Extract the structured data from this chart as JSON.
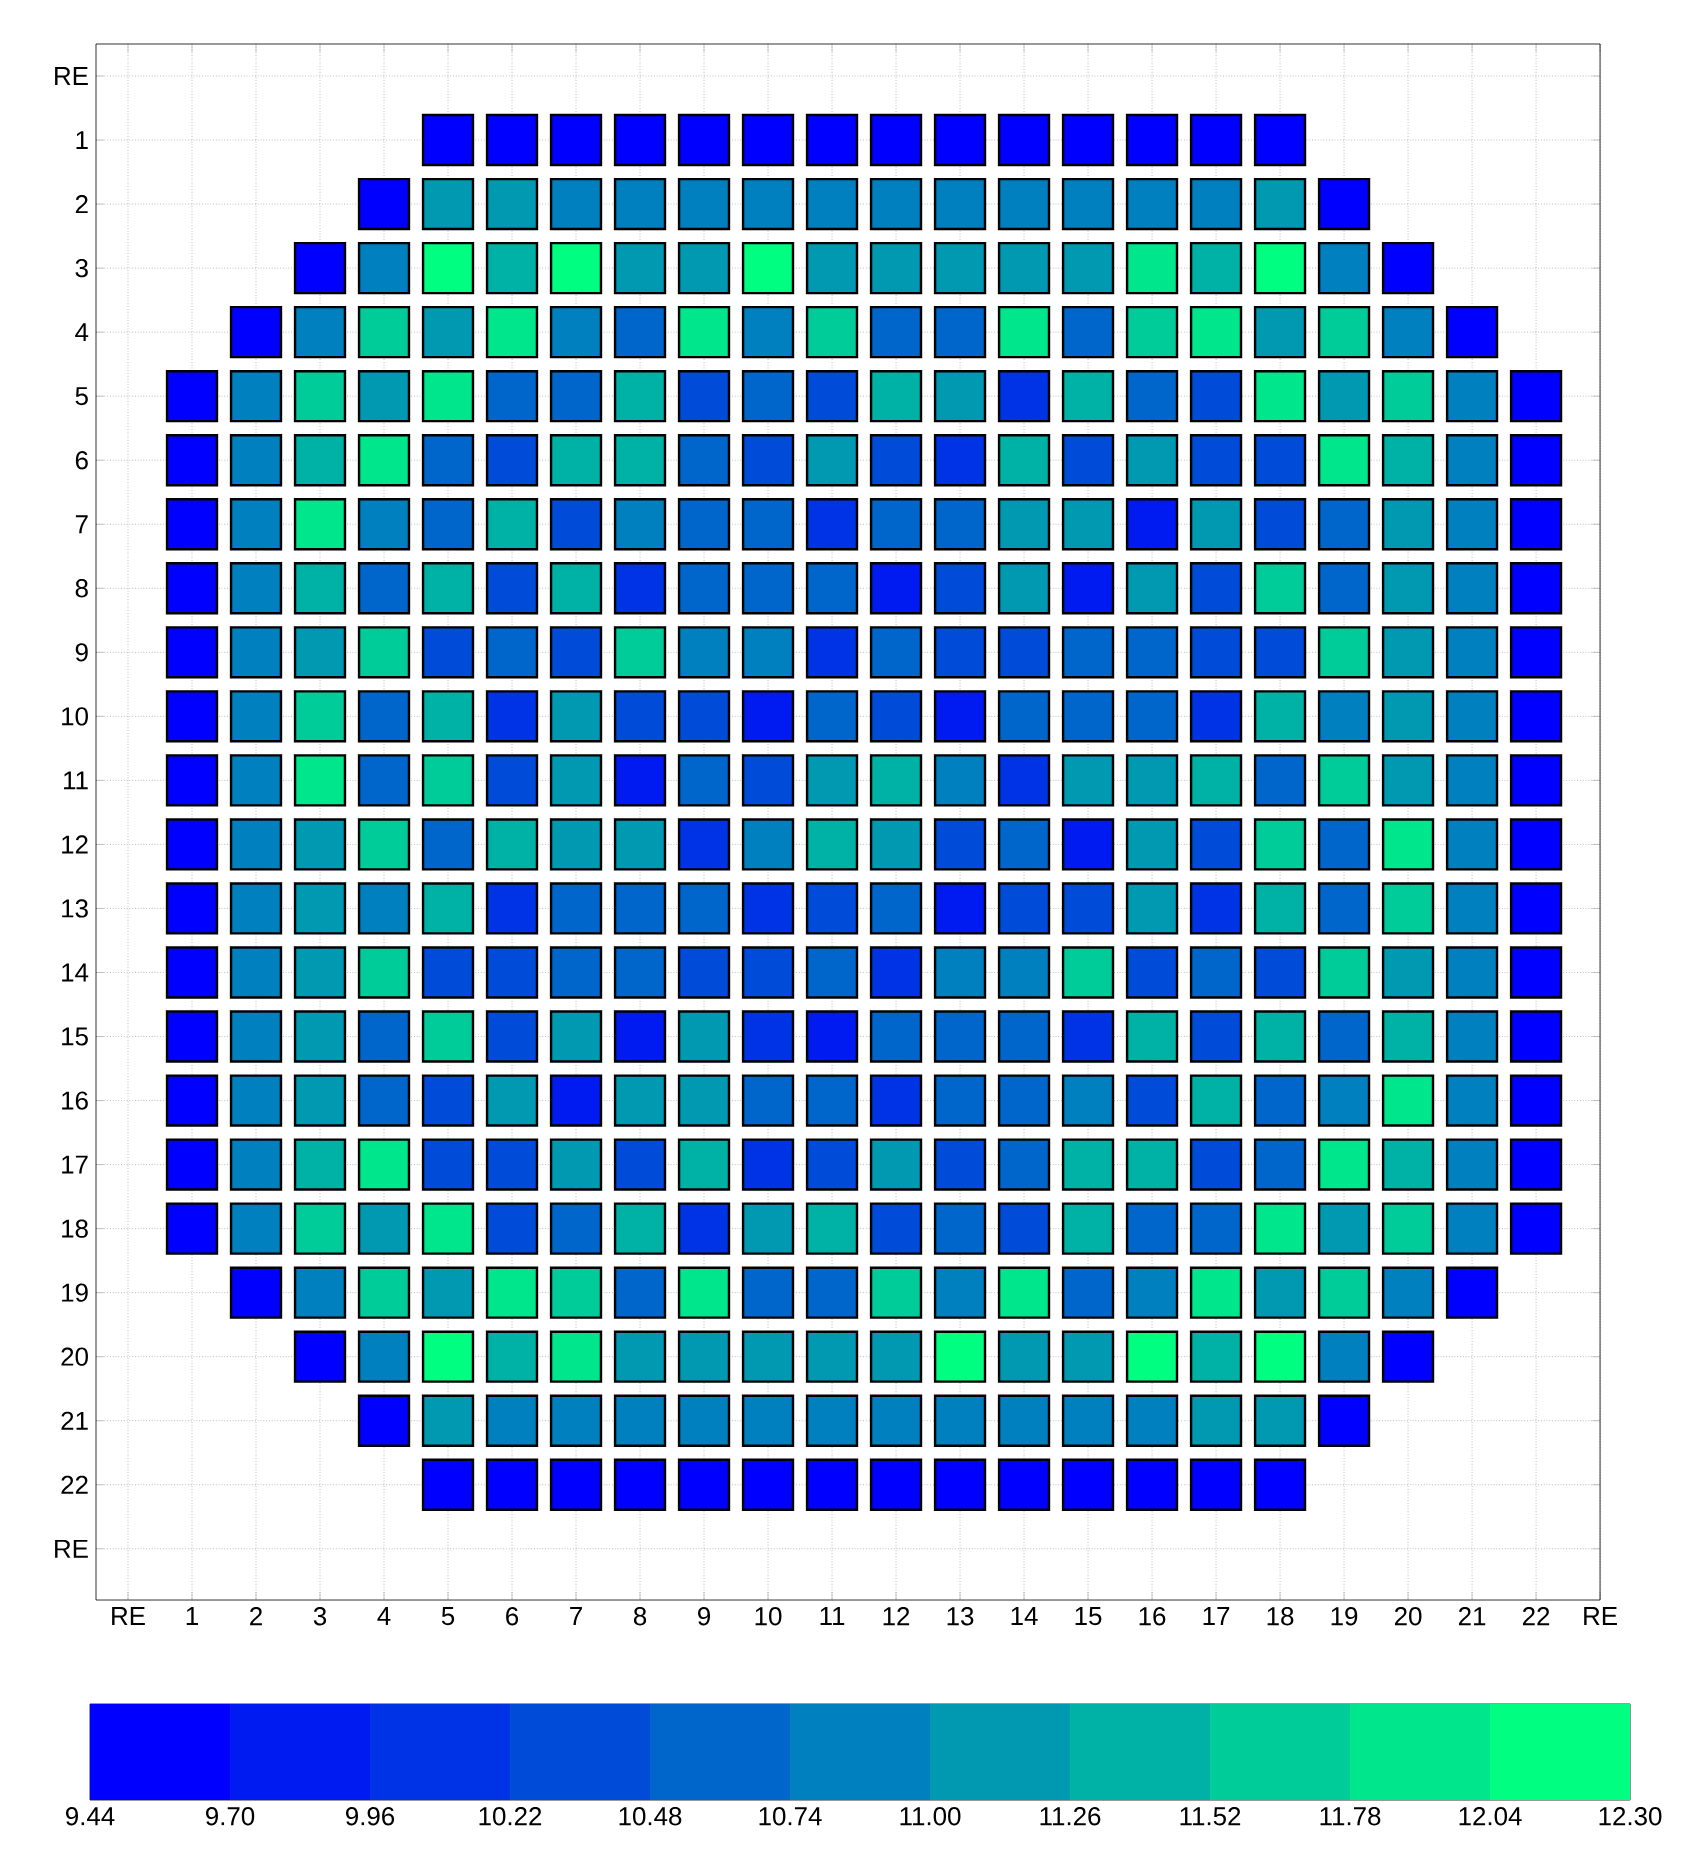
{
  "chart_data": {
    "type": "heatmap",
    "grid": true,
    "categories": [
      "RE",
      "1",
      "2",
      "3",
      "4",
      "5",
      "6",
      "7",
      "8",
      "9",
      "10",
      "11",
      "12",
      "13",
      "14",
      "15",
      "16",
      "17",
      "18",
      "19",
      "20",
      "21",
      "22",
      "RE"
    ],
    "y_categories": [
      "RE",
      "1",
      "2",
      "3",
      "4",
      "5",
      "6",
      "7",
      "8",
      "9",
      "10",
      "11",
      "12",
      "13",
      "14",
      "15",
      "16",
      "17",
      "18",
      "19",
      "20",
      "21",
      "22",
      "RE"
    ],
    "clim": [
      9.44,
      12.3
    ],
    "cticks": [
      9.44,
      {
        "value": 9.7,
        "label": "9.70"
      },
      9.96,
      10.22,
      10.48,
      10.74,
      {
        "value": 11.0,
        "label": "11.00"
      },
      11.26,
      11.52,
      11.78,
      12.04,
      {
        "value": 12.3,
        "label": "12.30"
      }
    ],
    "cells": [
      [
        null,
        null,
        null,
        null,
        null,
        null,
        null,
        null,
        null,
        null,
        null,
        null,
        null,
        null,
        null,
        null,
        null,
        null,
        null,
        null,
        null,
        null,
        null,
        null
      ],
      [
        null,
        null,
        null,
        null,
        null,
        9.57,
        9.57,
        9.57,
        9.57,
        9.57,
        9.57,
        9.57,
        9.57,
        9.57,
        9.57,
        9.57,
        9.57,
        9.57,
        9.57,
        null,
        null,
        null,
        null,
        null
      ],
      [
        null,
        null,
        null,
        null,
        9.57,
        11.13,
        11.13,
        10.87,
        10.87,
        10.87,
        10.87,
        10.87,
        10.87,
        10.87,
        10.87,
        10.87,
        10.87,
        10.87,
        11.13,
        9.57,
        null,
        null,
        null,
        null
      ],
      [
        null,
        null,
        null,
        9.57,
        10.87,
        12.17,
        11.39,
        12.17,
        11.13,
        11.13,
        12.17,
        11.13,
        11.13,
        11.13,
        11.13,
        11.13,
        11.91,
        11.39,
        12.17,
        10.87,
        9.57,
        null,
        null,
        null
      ],
      [
        null,
        null,
        9.57,
        10.87,
        11.65,
        11.13,
        11.91,
        10.87,
        10.61,
        11.91,
        10.87,
        11.65,
        10.61,
        10.61,
        11.91,
        10.61,
        11.65,
        11.91,
        11.13,
        11.65,
        10.87,
        9.57,
        null,
        null
      ],
      [
        null,
        9.57,
        10.87,
        11.65,
        11.13,
        11.91,
        10.61,
        10.61,
        11.39,
        10.35,
        10.61,
        10.35,
        11.39,
        11.13,
        10.09,
        11.39,
        10.61,
        10.35,
        11.91,
        11.13,
        11.65,
        10.87,
        9.57,
        null
      ],
      [
        null,
        9.57,
        10.87,
        11.39,
        11.91,
        10.61,
        10.35,
        11.39,
        11.39,
        10.61,
        10.35,
        11.13,
        10.35,
        10.09,
        11.39,
        10.35,
        11.13,
        10.35,
        10.35,
        11.91,
        11.39,
        10.87,
        9.57,
        null
      ],
      [
        null,
        9.57,
        10.87,
        11.91,
        10.87,
        10.61,
        11.39,
        10.35,
        10.87,
        10.61,
        10.61,
        10.09,
        10.61,
        10.61,
        11.13,
        11.13,
        9.83,
        11.13,
        10.35,
        10.61,
        11.13,
        10.87,
        9.57,
        null
      ],
      [
        null,
        9.57,
        10.87,
        11.39,
        10.61,
        11.39,
        10.35,
        11.39,
        10.09,
        10.61,
        10.61,
        10.61,
        9.83,
        10.35,
        11.13,
        9.83,
        11.13,
        10.35,
        11.65,
        10.61,
        11.13,
        10.87,
        9.57,
        null
      ],
      [
        null,
        9.57,
        10.87,
        11.13,
        11.65,
        10.35,
        10.61,
        10.35,
        11.65,
        10.87,
        10.87,
        10.09,
        10.61,
        10.35,
        10.35,
        10.61,
        10.61,
        10.35,
        10.35,
        11.65,
        11.13,
        10.87,
        9.57,
        null
      ],
      [
        null,
        9.57,
        10.87,
        11.65,
        10.61,
        11.39,
        10.09,
        11.13,
        10.35,
        10.35,
        9.83,
        10.61,
        10.35,
        9.83,
        10.61,
        10.61,
        10.61,
        10.09,
        11.39,
        10.87,
        11.13,
        10.87,
        9.57,
        null
      ],
      [
        null,
        9.57,
        10.87,
        11.91,
        10.61,
        11.65,
        10.35,
        11.13,
        9.83,
        10.61,
        10.35,
        11.13,
        11.39,
        10.87,
        10.09,
        11.13,
        11.13,
        11.39,
        10.61,
        11.65,
        11.13,
        10.87,
        9.57,
        null
      ],
      [
        null,
        9.57,
        10.87,
        11.13,
        11.65,
        10.61,
        11.39,
        11.13,
        11.13,
        10.09,
        10.87,
        11.39,
        11.13,
        10.35,
        10.61,
        9.83,
        11.13,
        10.35,
        11.65,
        10.61,
        11.91,
        10.87,
        9.57,
        null
      ],
      [
        null,
        9.57,
        10.87,
        11.13,
        10.87,
        11.39,
        10.09,
        10.61,
        10.61,
        10.61,
        10.09,
        10.35,
        10.61,
        9.83,
        10.35,
        10.35,
        11.13,
        10.09,
        11.39,
        10.61,
        11.65,
        10.87,
        9.57,
        null
      ],
      [
        null,
        9.57,
        10.87,
        11.13,
        11.65,
        10.35,
        10.35,
        10.61,
        10.61,
        10.35,
        10.35,
        10.61,
        10.09,
        10.87,
        10.87,
        11.65,
        10.35,
        10.61,
        10.35,
        11.65,
        11.13,
        10.87,
        9.57,
        null
      ],
      [
        null,
        9.57,
        10.87,
        11.13,
        10.61,
        11.65,
        10.35,
        11.13,
        9.83,
        11.13,
        10.09,
        9.83,
        10.61,
        10.61,
        10.61,
        10.09,
        11.39,
        10.35,
        11.39,
        10.61,
        11.39,
        10.87,
        9.57,
        null
      ],
      [
        null,
        9.57,
        10.87,
        11.13,
        10.61,
        10.35,
        11.13,
        9.83,
        11.13,
        11.13,
        10.61,
        10.61,
        10.09,
        10.61,
        10.61,
        10.87,
        10.35,
        11.39,
        10.61,
        10.87,
        11.91,
        10.87,
        9.57,
        null
      ],
      [
        null,
        9.57,
        10.87,
        11.39,
        11.91,
        10.35,
        10.35,
        11.13,
        10.35,
        11.39,
        10.09,
        10.35,
        11.13,
        10.35,
        10.61,
        11.39,
        11.39,
        10.35,
        10.61,
        11.91,
        11.39,
        10.87,
        9.57,
        null
      ],
      [
        null,
        9.57,
        10.87,
        11.65,
        11.13,
        11.91,
        10.35,
        10.61,
        11.39,
        10.09,
        11.13,
        11.39,
        10.35,
        10.61,
        10.35,
        11.39,
        10.61,
        10.61,
        11.91,
        11.13,
        11.65,
        10.87,
        9.57,
        null
      ],
      [
        null,
        null,
        9.57,
        10.87,
        11.65,
        11.13,
        11.91,
        11.65,
        10.61,
        11.91,
        10.61,
        10.61,
        11.65,
        10.87,
        11.91,
        10.61,
        10.87,
        11.91,
        11.13,
        11.65,
        10.87,
        9.57,
        null,
        null
      ],
      [
        null,
        null,
        null,
        9.57,
        10.87,
        12.17,
        11.39,
        11.91,
        11.13,
        11.13,
        11.13,
        11.13,
        11.13,
        12.17,
        11.13,
        11.13,
        12.17,
        11.39,
        12.17,
        10.87,
        9.57,
        null,
        null,
        null
      ],
      [
        null,
        null,
        null,
        null,
        9.57,
        11.13,
        10.87,
        10.87,
        10.87,
        10.87,
        10.87,
        10.87,
        10.87,
        10.87,
        10.87,
        10.87,
        10.87,
        11.13,
        11.13,
        9.57,
        null,
        null,
        null,
        null
      ],
      [
        null,
        null,
        null,
        null,
        null,
        9.57,
        9.57,
        9.57,
        9.57,
        9.57,
        9.57,
        9.57,
        9.57,
        9.57,
        9.57,
        9.57,
        9.57,
        9.57,
        9.57,
        null,
        null,
        null,
        null,
        null
      ],
      [
        null,
        null,
        null,
        null,
        null,
        null,
        null,
        null,
        null,
        null,
        null,
        null,
        null,
        null,
        null,
        null,
        null,
        null,
        null,
        null,
        null,
        null,
        null,
        null
      ]
    ]
  }
}
